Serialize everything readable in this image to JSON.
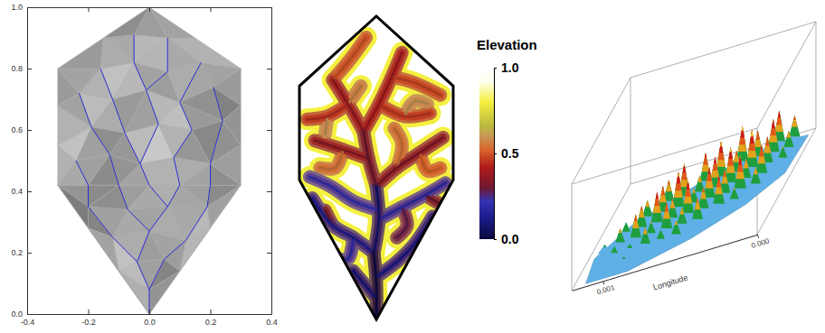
{
  "chart_data": [
    {
      "type": "mesh",
      "xlim": [
        -0.4,
        0.4
      ],
      "ylim": [
        0,
        1
      ],
      "xticks": [
        -0.4,
        -0.2,
        {
          "value": 0,
          "label": "0.0"
        },
        0.2,
        0.4
      ],
      "yticks": [
        {
          "value": 0,
          "label": "0.0"
        },
        0.2,
        0.4,
        0.6,
        0.8,
        {
          "value": 1,
          "label": "1.0"
        }
      ],
      "color": "#2b2bd6",
      "nodes": {
        "x": [
          0,
          0.3,
          0.3,
          0,
          -0.3,
          -0.3,
          0.1,
          0.2,
          -0.1,
          -0.2,
          0.3,
          0.3,
          -0.3,
          -0.3,
          0.15,
          -0.15,
          -0.2,
          -0.1,
          0,
          0.1,
          0.2,
          0,
          -0.04,
          0.05,
          -0.12,
          0,
          0.12,
          -0.2,
          -0.07,
          0.06,
          0.19,
          -0.24,
          -0.13,
          -0.03,
          0.08,
          0.2,
          -0.19,
          -0.08,
          0.03,
          0.14,
          0.24,
          -0.23,
          -0.12,
          -0.01,
          0.1,
          0.21,
          -0.16,
          -0.05,
          0.06,
          0.17,
          -0.05,
          0.06
        ],
        "y": [
          0,
          0.42,
          0.8,
          1,
          0.8,
          0.42,
          0.14,
          0.28,
          0.14,
          0.28,
          0.55,
          0.68,
          0.55,
          0.68,
          0.9,
          0.9,
          0.42,
          0.42,
          0.42,
          0.42,
          0.42,
          0.08,
          0.17,
          0.18,
          0.25,
          0.27,
          0.24,
          0.35,
          0.34,
          0.35,
          0.35,
          0.5,
          0.52,
          0.49,
          0.51,
          0.49,
          0.61,
          0.59,
          0.62,
          0.6,
          0.63,
          0.72,
          0.7,
          0.73,
          0.69,
          0.74,
          0.8,
          0.82,
          0.79,
          0.82,
          0.91,
          0.9
        ],
        "shade": [
          0.6,
          0.5,
          0.7,
          0.4,
          0.55,
          0.45,
          0.35,
          0.75,
          0.8,
          0.3,
          0.65,
          0.5,
          0.85,
          0.4,
          0.6,
          0.45,
          0.7,
          0.3,
          0.55,
          0.85,
          0.4,
          0.5,
          0.8,
          0.35,
          0.6,
          0.45,
          0.9,
          0.3,
          0.75,
          0.5,
          0.4,
          0.65,
          0.3,
          0.85,
          0.55,
          0.45,
          0.7,
          0.35,
          0.9,
          0.5,
          0.3,
          0.6,
          0.8,
          0.4,
          0.75,
          0.35,
          0.55,
          0.85,
          0.45,
          0.65,
          0.5,
          0.7
        ],
        "flow_to": [
          null,
          null,
          null,
          null,
          null,
          null,
          null,
          null,
          null,
          null,
          null,
          null,
          null,
          null,
          null,
          null,
          27,
          28,
          29,
          29,
          30,
          0,
          21,
          21,
          22,
          22,
          23,
          24,
          25,
          25,
          26,
          16,
          17,
          18,
          19,
          20,
          32,
          33,
          33,
          34,
          35,
          36,
          37,
          38,
          39,
          40,
          42,
          43,
          43,
          44,
          47,
          48
        ]
      }
    },
    {
      "type": "raster",
      "boundary": {
        "x": [
          0,
          0.3,
          0.3,
          0,
          -0.3,
          -0.3
        ],
        "y": [
          0,
          0.46,
          0.77,
          1,
          0.77,
          0.46
        ]
      },
      "channels": [
        {
          "x": [
            0.11,
            0.15,
            0.2
          ],
          "y": [
            0.67,
            0.72,
            0.71
          ],
          "elevation": 0.6
        },
        {
          "x": [
            -0.19,
            -0.2
          ],
          "y": [
            0.67,
            0.61
          ],
          "elevation": 0.6
        },
        {
          "x": [
            -0.11,
            -0.06
          ],
          "y": [
            0.71,
            0.77
          ],
          "elevation": 0.58
        },
        {
          "x": [
            0.08,
            0.1,
            0.07
          ],
          "y": [
            0.5,
            0.58,
            0.63
          ],
          "elevation": 0.55
        },
        {
          "x": [
            -0.13,
            -0.16,
            -0.22
          ],
          "y": [
            0.56,
            0.5,
            0.5
          ],
          "elevation": 0.55
        },
        {
          "x": [
            0.17,
            0.2,
            0.25
          ],
          "y": [
            0.55,
            0.49,
            0.5
          ],
          "elevation": 0.52
        },
        {
          "x": [
            -0.17,
            -0.1,
            -0.04
          ],
          "y": [
            0.79,
            0.86,
            0.93
          ],
          "elevation": 0.5
        },
        {
          "x": [
            0.06,
            0.15,
            0.25
          ],
          "y": [
            0.8,
            0.78,
            0.74
          ],
          "elevation": 0.48
        },
        {
          "x": [
            0.01,
            0.11,
            0.21
          ],
          "y": [
            0.71,
            0.67,
            0.68
          ],
          "elevation": 0.46
        },
        {
          "x": [
            -0.11,
            -0.19,
            -0.27
          ],
          "y": [
            0.71,
            0.67,
            0.66
          ],
          "elevation": 0.45
        },
        {
          "x": [
            -0.05,
            0.01,
            0.06,
            0.1
          ],
          "y": [
            0.62,
            0.71,
            0.8,
            0.88
          ],
          "elevation": 0.4
        },
        {
          "x": [
            -0.05,
            -0.11,
            -0.17
          ],
          "y": [
            0.62,
            0.71,
            0.79
          ],
          "elevation": 0.38
        },
        {
          "x": [
            -0.03,
            -0.13,
            -0.24
          ],
          "y": [
            0.53,
            0.56,
            0.59
          ],
          "elevation": 0.36
        },
        {
          "x": [
            0,
            0.08,
            0.17,
            0.26
          ],
          "y": [
            0.44,
            0.5,
            0.55,
            0.6
          ],
          "elevation": 0.34
        },
        {
          "x": [
            0,
            -0.03,
            -0.05
          ],
          "y": [
            0.44,
            0.53,
            0.62
          ],
          "elevation": 0.3
        },
        {
          "x": [
            -0.17,
            -0.2
          ],
          "y": [
            0.31,
            0.36
          ],
          "elevation": 0.3
        },
        {
          "x": [
            0.19,
            0.25
          ],
          "y": [
            0.41,
            0.38
          ],
          "elevation": 0.3
        },
        {
          "x": [
            0.1,
            0.12,
            0.08
          ],
          "y": [
            0.37,
            0.31,
            0.27
          ],
          "elevation": 0.28
        },
        {
          "x": [
            0.01,
            -0.09,
            -0.18,
            -0.26
          ],
          "y": [
            0.36,
            0.39,
            0.44,
            0.47
          ],
          "elevation": 0.22
        },
        {
          "x": [
            0.01,
            0.1,
            0.19,
            0.27
          ],
          "y": [
            0.33,
            0.37,
            0.41,
            0.45
          ],
          "elevation": 0.2
        },
        {
          "x": [
            -0.09,
            -0.11,
            -0.15
          ],
          "y": [
            0.27,
            0.2,
            0.2
          ],
          "elevation": 0.2
        },
        {
          "x": [
            -0.01,
            -0.09,
            -0.17,
            -0.25
          ],
          "y": [
            0.22,
            0.27,
            0.31,
            0.4
          ],
          "elevation": 0.14
        },
        {
          "x": [
            0,
            0.08,
            0.15,
            0.22
          ],
          "y": [
            0.14,
            0.19,
            0.25,
            0.34
          ],
          "elevation": 0.12
        },
        {
          "x": [
            0,
            -0.05,
            -0.09
          ],
          "y": [
            0.07,
            0.12,
            0.16
          ],
          "elevation": 0.1
        },
        {
          "x": [
            -0.01,
            0.01,
            0
          ],
          "y": [
            0.22,
            0.33,
            0.44
          ],
          "elevation": 0.08
        },
        {
          "x": [
            0,
            0,
            -0.01
          ],
          "y": [
            0,
            0.12,
            0.22
          ],
          "elevation": 0.02
        }
      ],
      "colorbar": {
        "title": "Elevation",
        "range": [
          0,
          1
        ],
        "ticks": [
          {
            "value": 0,
            "label": "0.0"
          },
          0.5,
          {
            "value": 1,
            "label": "1.0"
          }
        ],
        "colorscale": [
          [
            0,
            "#0a0a3a"
          ],
          [
            0.12,
            "#1a1a8a"
          ],
          [
            0.22,
            "#3434b4"
          ],
          [
            0.3,
            "#701830"
          ],
          [
            0.42,
            "#b01c1c"
          ],
          [
            0.52,
            "#d8642a"
          ],
          [
            0.6,
            "#c89858"
          ],
          [
            0.66,
            "#b8b840"
          ],
          [
            0.8,
            "#f4f040"
          ],
          [
            0.92,
            "#fffff0"
          ],
          [
            1,
            "#ffffff"
          ]
        ]
      }
    },
    {
      "type": "surface",
      "xlabel": "Longitude",
      "xlim": [
        0.0012,
        0
      ],
      "xticks": [
        0.001,
        {
          "value": 0,
          "label": "0.000"
        }
      ],
      "ylim": [
        0,
        0.001
      ],
      "zlim": [
        0,
        1
      ],
      "tick_labels": "x",
      "colorscale": [
        [
          0,
          "#5fb0e6"
        ],
        [
          0.15,
          "#1f9e3e"
        ],
        [
          0.35,
          "#e2a21c"
        ],
        [
          0.5,
          "#e0581a"
        ],
        [
          0.65,
          "#cc1a1a"
        ],
        [
          0.8,
          "#f2dc22"
        ]
      ],
      "footprint": {
        "lon": [
          0.00112,
          0.00085,
          0.0005,
          0.00022,
          5e-05,
          3e-05,
          0.00025,
          0.0006,
          0.001,
          0.00116
        ],
        "lat": [
          3e-05,
          3e-05,
          0.00018,
          0.00038,
          0.0006,
          0.00095,
          0.00097,
          0.00082,
          0.00055,
          0.00028
        ]
      },
      "peaks": {
        "lon": [
          0.0001,
          0.0002,
          0.0001,
          0.0002,
          0.0003,
          0.0004,
          0.0001,
          0.0002,
          0.0003,
          0.0004,
          0.0005,
          0.0006,
          0.0002,
          0.0003,
          0.0004,
          0.0005,
          0.0006,
          0.0007,
          0.0008,
          0.0002,
          0.0003,
          0.0004,
          0.0005,
          0.0006,
          0.0007,
          0.0008,
          0.0009,
          0.0003,
          0.0004,
          0.0005,
          0.0006,
          0.0007,
          0.0008,
          0.0009,
          0.001,
          0.0005,
          0.0006,
          0.0007,
          0.0008,
          0.0009,
          0.001,
          0.0011,
          0.0006,
          0.0007,
          0.0008,
          0.0009,
          0.001,
          0.0011,
          0.0008,
          0.0009,
          0.001
        ],
        "lat": [
          0.0009,
          0.0009,
          0.0008,
          0.0008,
          0.0008,
          0.0008,
          0.0007,
          0.0007,
          0.0007,
          0.0007,
          0.0007,
          0.0007,
          0.0006,
          0.0006,
          0.0006,
          0.0006,
          0.0006,
          0.0006,
          0.0006,
          0.0005,
          0.0005,
          0.0005,
          0.0005,
          0.0005,
          0.0005,
          0.0005,
          0.0005,
          0.0004,
          0.0004,
          0.0004,
          0.0004,
          0.0004,
          0.0004,
          0.0004,
          0.0004,
          0.0003,
          0.0003,
          0.0003,
          0.0003,
          0.0003,
          0.0003,
          0.0003,
          0.0002,
          0.0002,
          0.0002,
          0.0002,
          0.0002,
          0.0002,
          0.0001,
          0.0001,
          0.0001
        ],
        "z": [
          0.6,
          0.8,
          0.5,
          0.85,
          0.7,
          0.9,
          0.4,
          0.7,
          0.95,
          0.6,
          0.9,
          0.75,
          0.75,
          0.55,
          0.9,
          0.8,
          0.5,
          0.85,
          0.6,
          0.5,
          0.85,
          0.65,
          0.8,
          0.45,
          0.9,
          0.7,
          0.5,
          0.4,
          0.75,
          0.6,
          0.85,
          0.55,
          0.8,
          0.6,
          0.35,
          0.6,
          0.5,
          0.7,
          0.4,
          0.65,
          0.45,
          0.2,
          0.45,
          0.35,
          0.5,
          0.25,
          0.3,
          0.15,
          0.15,
          0.2,
          0.1
        ]
      }
    }
  ]
}
